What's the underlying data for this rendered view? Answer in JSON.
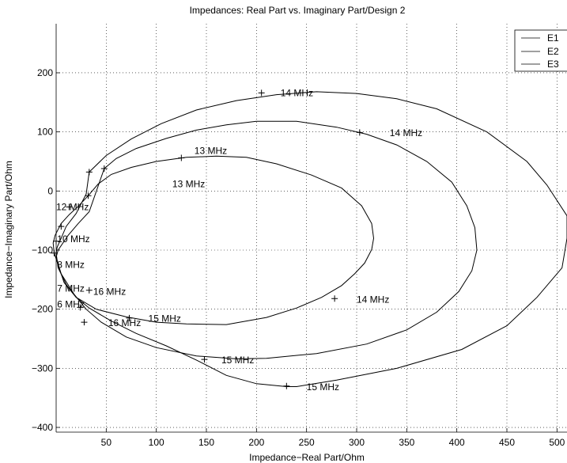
{
  "chart_data": {
    "type": "line",
    "title": "Impedances: Real Part vs. Imaginary Part/Design 2",
    "xlabel": "Impedance−Real Part/Ohm",
    "ylabel": "Impedance−Imaginary Part/Ohm",
    "xlim": [
      0,
      510
    ],
    "ylim": [
      -408,
      283
    ],
    "xticks": [
      50,
      100,
      150,
      200,
      250,
      300,
      350,
      400,
      450,
      500
    ],
    "xtick_labels": [
      "50",
      "100",
      "150",
      "200",
      "250",
      "300",
      "350",
      "400",
      "450",
      "500"
    ],
    "yticks": [
      200,
      100,
      0,
      -100,
      -200,
      -300,
      -400
    ],
    "ytick_labels": [
      "200",
      "100",
      "0",
      "−100",
      "−200",
      "−300",
      "−400"
    ],
    "grid": true,
    "legend_position": "top-right",
    "color": "#000000",
    "series": [
      {
        "name": "E1",
        "points": [
          [
            32,
            -8
          ],
          [
            42,
            12
          ],
          [
            55,
            28
          ],
          [
            75,
            40
          ],
          [
            100,
            50
          ],
          [
            130,
            57
          ],
          [
            160,
            59
          ],
          [
            190,
            57
          ],
          [
            220,
            46
          ],
          [
            255,
            27
          ],
          [
            285,
            5
          ],
          [
            305,
            -25
          ],
          [
            315,
            -55
          ],
          [
            317,
            -80
          ],
          [
            315,
            -99
          ],
          [
            308,
            -122
          ],
          [
            298,
            -140
          ],
          [
            285,
            -160
          ],
          [
            265,
            -180
          ],
          [
            240,
            -198
          ],
          [
            210,
            -214
          ],
          [
            170,
            -226
          ],
          [
            130,
            -225
          ],
          [
            100,
            -222
          ],
          [
            70,
            -213
          ],
          [
            40,
            -200
          ],
          [
            20,
            -180
          ],
          [
            8,
            -155
          ],
          [
            2,
            -125
          ],
          [
            -2,
            -105
          ],
          [
            -3,
            -88
          ],
          [
            -1,
            -75
          ],
          [
            5,
            -55
          ],
          [
            13,
            -40
          ],
          [
            22,
            -26
          ],
          [
            32,
            -8
          ]
        ]
      },
      {
        "name": "E2",
        "points": [
          [
            48,
            38
          ],
          [
            60,
            55
          ],
          [
            80,
            72
          ],
          [
            110,
            89
          ],
          [
            140,
            103
          ],
          [
            170,
            112
          ],
          [
            200,
            118
          ],
          [
            240,
            118
          ],
          [
            280,
            108
          ],
          [
            310,
            96
          ],
          [
            340,
            78
          ],
          [
            370,
            50
          ],
          [
            395,
            15
          ],
          [
            410,
            -25
          ],
          [
            418,
            -62
          ],
          [
            420,
            -100
          ],
          [
            415,
            -135
          ],
          [
            402,
            -170
          ],
          [
            380,
            -205
          ],
          [
            350,
            -235
          ],
          [
            310,
            -259
          ],
          [
            260,
            -275
          ],
          [
            210,
            -283
          ],
          [
            180,
            -284
          ],
          [
            140,
            -279
          ],
          [
            100,
            -265
          ],
          [
            70,
            -247
          ],
          [
            45,
            -222
          ],
          [
            30,
            -200
          ],
          [
            18,
            -175
          ],
          [
            5,
            -140
          ],
          [
            0,
            -112
          ],
          [
            2,
            -100
          ],
          [
            12,
            -75
          ],
          [
            22,
            -55
          ],
          [
            33,
            -35
          ],
          [
            48,
            38
          ]
        ]
      },
      {
        "name": "E3",
        "points": [
          [
            33,
            32
          ],
          [
            50,
            60
          ],
          [
            75,
            88
          ],
          [
            105,
            114
          ],
          [
            140,
            137
          ],
          [
            180,
            153
          ],
          [
            220,
            163
          ],
          [
            260,
            168
          ],
          [
            300,
            165
          ],
          [
            340,
            156
          ],
          [
            380,
            139
          ],
          [
            430,
            100
          ],
          [
            470,
            50
          ],
          [
            490,
            10
          ],
          [
            510,
            -42
          ],
          [
            510,
            -80
          ],
          [
            505,
            -130
          ],
          [
            480,
            -180
          ],
          [
            450,
            -228
          ],
          [
            405,
            -268
          ],
          [
            340,
            -300
          ],
          [
            280,
            -320
          ],
          [
            240,
            -331
          ],
          [
            230,
            -331
          ],
          [
            200,
            -326
          ],
          [
            170,
            -312
          ],
          [
            140,
            -286
          ],
          [
            110,
            -262
          ],
          [
            80,
            -241
          ],
          [
            55,
            -220
          ],
          [
            33,
            -198
          ],
          [
            20,
            -180
          ],
          [
            10,
            -158
          ],
          [
            2,
            -130
          ],
          [
            0,
            -105
          ],
          [
            1,
            -95
          ],
          [
            5,
            -80
          ],
          [
            10,
            -60
          ],
          [
            20,
            -38
          ],
          [
            30,
            -5
          ],
          [
            33,
            32
          ]
        ]
      }
    ],
    "markers": [
      [
        32,
        -8
      ],
      [
        48,
        38
      ],
      [
        33,
        32
      ],
      [
        13,
        -27
      ],
      [
        5,
        -60
      ],
      [
        0,
        -85
      ],
      [
        -2,
        -105
      ],
      [
        24,
        -197
      ],
      [
        33,
        -168
      ],
      [
        28,
        -222
      ],
      [
        73,
        -215
      ],
      [
        148,
        -285
      ],
      [
        230,
        -330
      ],
      [
        278,
        -182
      ],
      [
        303,
        99
      ],
      [
        205,
        166
      ],
      [
        125,
        56
      ]
    ],
    "annotations": [
      {
        "text": "13 MHz",
        "x": 116,
        "y": 12
      },
      {
        "text": "13 MHz",
        "x": 138,
        "y": 68
      },
      {
        "text": "12 MHz",
        "x": 0,
        "y": -27
      },
      {
        "text": "10 MHz",
        "x": 1,
        "y": -81
      },
      {
        "text": "8 MHz",
        "x": 1,
        "y": -125
      },
      {
        "text": "7 MHz",
        "x": 1,
        "y": -165
      },
      {
        "text": "16 MHz",
        "x": 37,
        "y": -170
      },
      {
        "text": "6 MHz",
        "x": 1,
        "y": -192
      },
      {
        "text": "16 MHz",
        "x": 52,
        "y": -223
      },
      {
        "text": "15 MHz",
        "x": 92,
        "y": -216
      },
      {
        "text": "15 MHz",
        "x": 165,
        "y": -286
      },
      {
        "text": "15 MHz",
        "x": 250,
        "y": -332
      },
      {
        "text": "14 MHz",
        "x": 300,
        "y": -184
      },
      {
        "text": "14 MHz",
        "x": 333,
        "y": 98
      },
      {
        "text": "14 MHz",
        "x": 224,
        "y": 166
      }
    ]
  }
}
